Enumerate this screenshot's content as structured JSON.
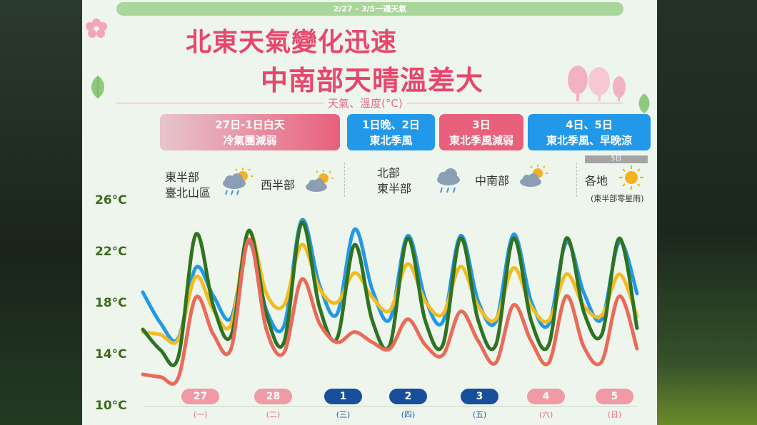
{
  "header": {
    "date_range": "2/27 - 3/5一週天氣",
    "title_line1": "北東天氣變化迅速",
    "title_line2": "中南部天晴溫差大",
    "subtitle": "天氣、溫度(°C)"
  },
  "periods": [
    {
      "line1": "27日-1日白天",
      "line2": "冷氣團減弱"
    },
    {
      "line1": "1日晚、2日",
      "line2": "東北季風"
    },
    {
      "line1": "3日",
      "line2": "東北季風減弱"
    },
    {
      "line1": "4日、5日",
      "line2": "東北季風、早晚涼"
    }
  ],
  "weather": {
    "g1_region_a_line1": "東半部",
    "g1_region_a_line2": "臺北山區",
    "g1_region_a_icon": "rain-cloud-sun-icon",
    "g1_region_b": "西半部",
    "g1_region_b_icon": "cloud-sun-icon",
    "g2_region_a_line1": "北部",
    "g2_region_a_line2": "東半部",
    "g2_region_a_icon": "rain-cloud-icon",
    "g2_region_b": "中南部",
    "g2_region_b_icon": "cloud-sun-icon",
    "g3_day_tag": "5日",
    "g3_region": "各地",
    "g3_icon": "sun-icon",
    "g3_note": "(東半部零星雨)"
  },
  "chart_data": {
    "type": "line",
    "ylim": [
      10,
      26
    ],
    "yticks": [
      "26°C",
      "22°C",
      "18°C",
      "14°C",
      "10°C"
    ],
    "x": [
      0,
      0.25,
      0.5,
      0.75,
      1,
      1.25,
      1.5,
      1.75,
      2,
      2.25,
      2.5,
      2.75,
      3,
      3.25,
      3.5,
      3.75,
      4,
      4.25,
      4.5,
      4.75,
      5,
      5.25,
      5.5,
      5.75,
      6,
      6.25,
      6.5,
      6.75,
      7
    ],
    "days": [
      {
        "date": "27",
        "weekday": "(一)",
        "style": "pink"
      },
      {
        "date": "28",
        "weekday": "(二)",
        "style": "pink"
      },
      {
        "date": "1",
        "weekday": "(三)",
        "style": "navy"
      },
      {
        "date": "2",
        "weekday": "(四)",
        "style": "navy"
      },
      {
        "date": "3",
        "weekday": "(五)",
        "style": "navy"
      },
      {
        "date": "4",
        "weekday": "(六)",
        "style": "pink"
      },
      {
        "date": "5",
        "weekday": "(日)",
        "style": "pink"
      }
    ],
    "series": [
      {
        "color": "#2399e6",
        "values": [
          18.9,
          16.5,
          15.3,
          20.8,
          18.6,
          16.9,
          22.8,
          17.5,
          16.3,
          24.5,
          19.5,
          17.2,
          23.8,
          19.1,
          16.8,
          23.3,
          18.4,
          16.6,
          23.3,
          18.2,
          16.6,
          23.4,
          18.2,
          16.4,
          22.8,
          18.8,
          16.8,
          22.8,
          18.8
        ]
      },
      {
        "color": "#f1bc22",
        "values": [
          15.8,
          15.6,
          15.2,
          20.1,
          17.5,
          16.4,
          23.6,
          18.8,
          17.9,
          22.6,
          19.2,
          18.1,
          20.4,
          18.5,
          17.5,
          21.1,
          18.2,
          17.2,
          20.9,
          17.8,
          16.8,
          20.8,
          17.8,
          16.7,
          20.3,
          17.8,
          17.1,
          20.3,
          17.0
        ]
      },
      {
        "color": "#2e7322",
        "values": [
          16.0,
          14.4,
          13.8,
          23.4,
          17.8,
          15.5,
          23.7,
          17.2,
          15.0,
          24.3,
          17.8,
          15.3,
          22.6,
          16.7,
          14.8,
          23.1,
          16.7,
          14.8,
          23.1,
          16.7,
          14.8,
          23.1,
          16.7,
          14.8,
          23.1,
          17.3,
          15.6,
          23.1,
          16.1
        ]
      },
      {
        "color": "#ea6a5a",
        "values": [
          12.5,
          12.3,
          12.2,
          18.5,
          15.6,
          14.5,
          23.0,
          16.0,
          14.2,
          19.9,
          16.5,
          15.0,
          15.8,
          15.0,
          14.5,
          16.8,
          14.8,
          14.0,
          17.4,
          15.1,
          13.4,
          17.9,
          15.1,
          13.4,
          18.6,
          14.6,
          13.5,
          18.6,
          14.5
        ]
      }
    ]
  }
}
